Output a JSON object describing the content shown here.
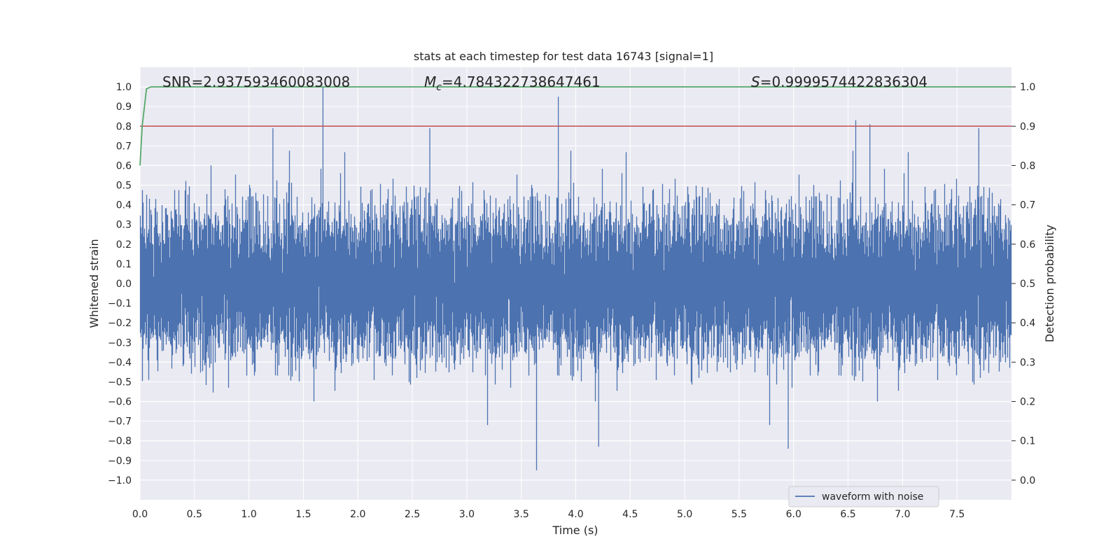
{
  "chart_data": {
    "type": "line",
    "title": "stats at each timestep for test data 16743 [signal=1]",
    "xlabel": "Time (s)",
    "ylabel": "Whitened strain",
    "y2label": "Detection probability",
    "xlim": [
      0.0,
      8.0
    ],
    "ylim": [
      -1.1,
      1.1
    ],
    "y2lim": [
      -0.05,
      1.05
    ],
    "xticks": [
      "0.0",
      "0.5",
      "1.0",
      "1.5",
      "2.0",
      "2.5",
      "3.0",
      "3.5",
      "4.0",
      "4.5",
      "5.0",
      "5.5",
      "6.0",
      "6.5",
      "7.0",
      "7.5"
    ],
    "yticks": [
      "1.0",
      "0.9",
      "0.8",
      "0.7",
      "0.6",
      "0.5",
      "0.4",
      "0.3",
      "0.2",
      "0.1",
      "0.0",
      "-0.1",
      "-0.2",
      "-0.3",
      "-0.4",
      "-0.5",
      "-0.6",
      "-0.7",
      "-0.8",
      "-0.9",
      "-1.0"
    ],
    "y2ticks": [
      "1.0",
      "0.9",
      "0.8",
      "0.7",
      "0.6",
      "0.5",
      "0.4",
      "0.3",
      "0.2",
      "0.1",
      "0.0"
    ],
    "annotations": {
      "snr": "SNR=2.937593460083008",
      "mc_symbol": "M",
      "mc_sub": "c",
      "mc_value": "=4.784322738647461",
      "s_symbol": "S",
      "s_value": "=0.9999574422836304"
    },
    "legend": {
      "position": "lower-right",
      "entries": [
        "waveform with noise"
      ]
    },
    "grid": true,
    "colors": {
      "waveform": "#4c72b0",
      "probability": "#55a868",
      "threshold": "#c44e52",
      "background": "#eaeaf2",
      "grid": "#ffffff"
    },
    "series": [
      {
        "name": "waveform with noise",
        "axis": "left",
        "envelope": {
          "sample_rate_hz": 2048,
          "x": [
            0.0,
            8.0
          ],
          "typical_amplitude": 0.3
        },
        "peaks": {
          "x": [
            1.68,
            3.84,
            6.57,
            6.7,
            2.66,
            7.7,
            1.22,
            3.64,
            4.21,
            5.95
          ],
          "y": [
            1.0,
            0.95,
            0.83,
            0.81,
            0.79,
            0.79,
            0.79,
            -0.95,
            -0.83,
            -0.84
          ]
        }
      },
      {
        "axis": "right",
        "x": [
          0.0,
          0.02,
          0.06,
          0.1,
          0.2,
          1.0,
          8.0
        ],
        "y": [
          0.8,
          0.9,
          0.995,
          1.0,
          1.0,
          1.0,
          1.0
        ]
      },
      {
        "axis": "right",
        "x": [
          0.0,
          8.0
        ],
        "y": [
          0.9,
          0.9
        ]
      }
    ]
  }
}
